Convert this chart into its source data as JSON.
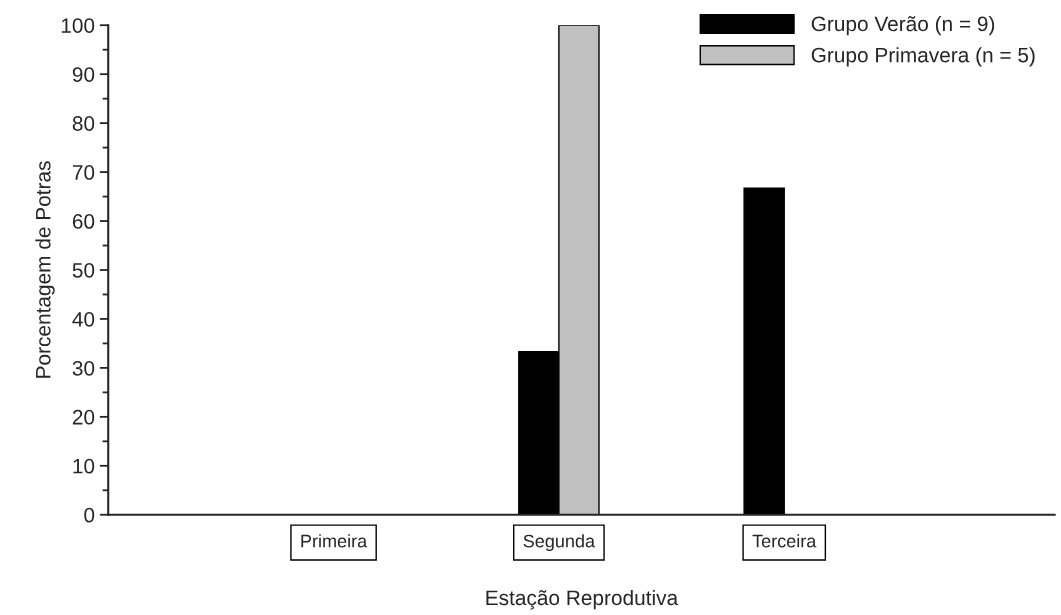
{
  "chart_data": {
    "type": "bar",
    "xlabel": "Estação Reprodutiva",
    "ylabel": "Porcentagem de Potras",
    "categories": [
      "Primeira",
      "Segunda",
      "Terceira"
    ],
    "series": [
      {
        "name": "Grupo Verão (n = 9)",
        "color": "#000000",
        "values": [
          0,
          33.3,
          66.7
        ]
      },
      {
        "name": "Grupo Primavera (n = 5)",
        "color": "#c0c0c0",
        "values": [
          0,
          100,
          0
        ]
      }
    ],
    "ylim": [
      0,
      100
    ],
    "yticks": [
      0,
      10,
      20,
      30,
      40,
      50,
      60,
      70,
      80,
      90,
      100
    ],
    "grid": false,
    "legend": "top right"
  }
}
